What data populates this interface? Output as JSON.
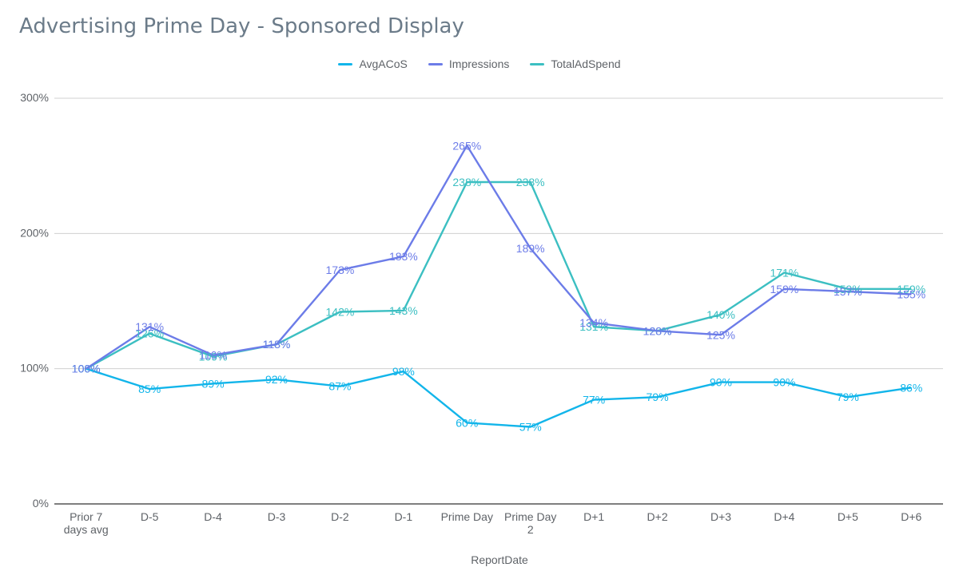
{
  "chart_data": {
    "type": "line",
    "title": "Advertising Prime Day - Sponsored Display",
    "xlabel": "ReportDate",
    "ylabel": "",
    "ylim": [
      0,
      300
    ],
    "y_ticks": [
      "0%",
      "100%",
      "200%",
      "300%"
    ],
    "grid": true,
    "legend_position": "top",
    "categories": [
      [
        "Prior 7",
        "days avg"
      ],
      [
        "D-5"
      ],
      [
        "D-4"
      ],
      [
        "D-3"
      ],
      [
        "D-2"
      ],
      [
        "D-1"
      ],
      [
        "Prime Day"
      ],
      [
        "Prime Day",
        "2"
      ],
      [
        "D+1"
      ],
      [
        "D+2"
      ],
      [
        "D+3"
      ],
      [
        "D+4"
      ],
      [
        "D+5"
      ],
      [
        "D+6"
      ]
    ],
    "series": [
      {
        "name": "AvgACoS",
        "color": "#12b5ea",
        "values": [
          100,
          85,
          89,
          92,
          87,
          98,
          60,
          57,
          77,
          79,
          90,
          90,
          79,
          86
        ],
        "labels": [
          "100%",
          "85%",
          "89%",
          "92%",
          "87%",
          "98%",
          "60%",
          "57%",
          "77%",
          "79%",
          "90%",
          "90%",
          "79%",
          "86%"
        ]
      },
      {
        "name": "Impressions",
        "color": "#6c7ce8",
        "values": [
          100,
          131,
          110,
          118,
          173,
          183,
          265,
          189,
          134,
          128,
          125,
          159,
          157,
          155
        ],
        "labels": [
          "100%",
          "131%",
          "110%",
          "118%",
          "173%",
          "183%",
          "265%",
          "189%",
          "134%",
          "128%",
          "125%",
          "159%",
          "157%",
          "155%"
        ]
      },
      {
        "name": "TotalAdSpend",
        "color": "#3cbfc2",
        "values": [
          100,
          126,
          109,
          118,
          142,
          143,
          238,
          238,
          131,
          128,
          140,
          171,
          159,
          159
        ],
        "labels": [
          "100%",
          "126%",
          "109%",
          "118%",
          "142%",
          "143%",
          "238%",
          "238%",
          "131%",
          "128%",
          "140%",
          "171%",
          "159%",
          "159%"
        ]
      }
    ]
  }
}
